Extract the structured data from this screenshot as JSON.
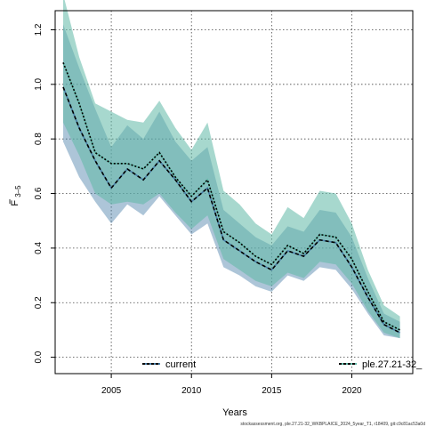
{
  "chart_data": {
    "type": "area",
    "xlabel": "Years",
    "ylabel": "F",
    "ylabel_subscript": "3–5",
    "xlim": [
      2001.5,
      2023.8
    ],
    "ylim": [
      -0.06,
      1.27
    ],
    "x_ticks": [
      2005,
      2010,
      2015,
      2020
    ],
    "y_ticks": [
      0.0,
      0.2,
      0.4,
      0.6,
      0.8,
      1.0,
      1.2
    ],
    "y_tick_labels": [
      "0.0",
      "0.2",
      "0.4",
      "0.6",
      "0.8",
      "1.0",
      "1.2"
    ],
    "grid": true,
    "legend_position": "bottom",
    "years": [
      2002,
      2003,
      2004,
      2005,
      2006,
      2007,
      2008,
      2009,
      2010,
      2011,
      2012,
      2013,
      2014,
      2015,
      2016,
      2017,
      2018,
      2019,
      2020,
      2021,
      2022,
      2023
    ],
    "series": [
      {
        "name": "current",
        "color": "#4a7fa8",
        "band_color": "#4a7fa8",
        "line_dash": "4,3",
        "values": [
          0.99,
          0.84,
          0.72,
          0.62,
          0.69,
          0.65,
          0.72,
          0.65,
          0.57,
          0.62,
          0.43,
          0.39,
          0.35,
          0.32,
          0.39,
          0.37,
          0.43,
          0.42,
          0.33,
          0.22,
          0.12,
          0.09
        ],
        "lower": [
          0.79,
          0.66,
          0.57,
          0.49,
          0.56,
          0.52,
          0.59,
          0.52,
          0.45,
          0.49,
          0.33,
          0.3,
          0.26,
          0.24,
          0.3,
          0.28,
          0.33,
          0.32,
          0.25,
          0.16,
          0.08,
          0.07
        ],
        "upper": [
          1.22,
          1.06,
          0.91,
          0.77,
          0.85,
          0.8,
          0.9,
          0.79,
          0.72,
          0.77,
          0.54,
          0.49,
          0.44,
          0.41,
          0.48,
          0.46,
          0.54,
          0.53,
          0.44,
          0.29,
          0.16,
          0.13
        ]
      },
      {
        "name": "ple.27.21-32_",
        "color": "#5fb8a6",
        "band_color": "#5fb8a6",
        "line_dash": "2,2",
        "values": [
          1.08,
          0.93,
          0.75,
          0.71,
          0.71,
          0.69,
          0.75,
          0.66,
          0.59,
          0.65,
          0.46,
          0.42,
          0.37,
          0.34,
          0.41,
          0.38,
          0.45,
          0.44,
          0.36,
          0.24,
          0.13,
          0.1
        ],
        "lower": [
          0.86,
          0.74,
          0.6,
          0.56,
          0.57,
          0.56,
          0.6,
          0.53,
          0.47,
          0.52,
          0.36,
          0.32,
          0.28,
          0.26,
          0.31,
          0.29,
          0.35,
          0.34,
          0.27,
          0.17,
          0.09,
          0.07
        ],
        "upper": [
          1.33,
          1.1,
          0.93,
          0.9,
          0.87,
          0.86,
          0.94,
          0.84,
          0.76,
          0.86,
          0.61,
          0.56,
          0.49,
          0.45,
          0.55,
          0.51,
          0.61,
          0.6,
          0.49,
          0.32,
          0.19,
          0.15
        ]
      }
    ]
  },
  "footer": "stockassessment.org, ple.27.21-32_WKBPLAICE_2024_5year_T1, r18409, git:c9c81ac53a0d"
}
